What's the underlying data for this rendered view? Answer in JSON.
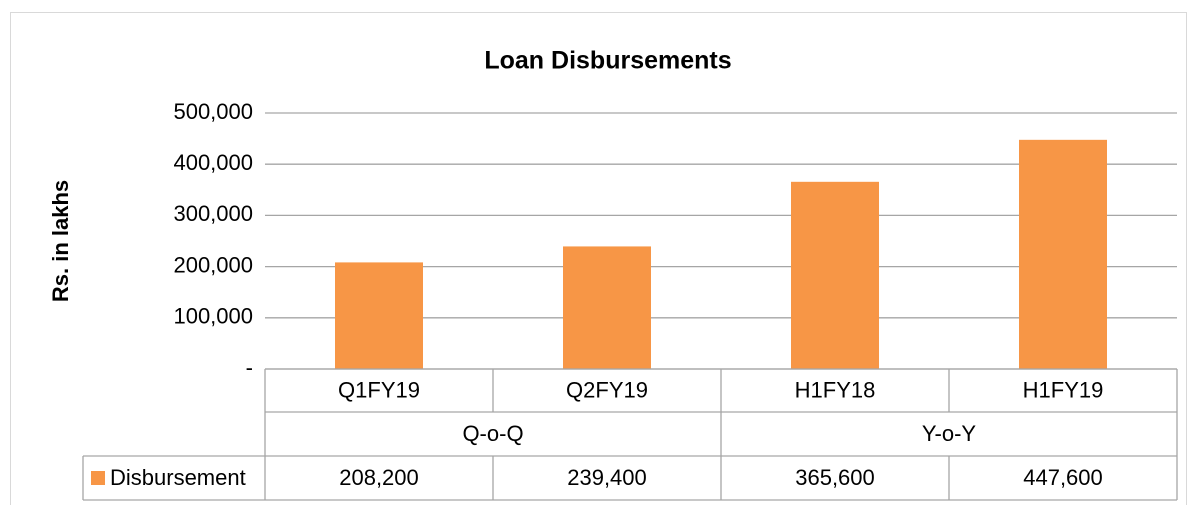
{
  "chart_data": {
    "type": "bar",
    "title": "Loan Disbursements",
    "y_label": "Rs. in lakhs",
    "categories": [
      "Q1FY19",
      "Q2FY19",
      "H1FY18",
      "H1FY19"
    ],
    "groups": [
      "Q-o-Q",
      "Y-o-Y"
    ],
    "series": [
      {
        "name": "Disbursement",
        "color": "#f79646",
        "values": [
          208200,
          239400,
          365600,
          447600
        ],
        "value_labels": [
          "208,200",
          "239,400",
          "365,600",
          "447,600"
        ]
      }
    ],
    "ylim": [
      0,
      500000
    ],
    "yticks": [
      {
        "value": 0,
        "label": "-"
      },
      {
        "value": 100000,
        "label": "100,000"
      },
      {
        "value": 200000,
        "label": "200,000"
      },
      {
        "value": 300000,
        "label": "300,000"
      },
      {
        "value": 400000,
        "label": "400,000"
      },
      {
        "value": 500000,
        "label": "500,000"
      }
    ],
    "grid": true,
    "data_table": true
  }
}
